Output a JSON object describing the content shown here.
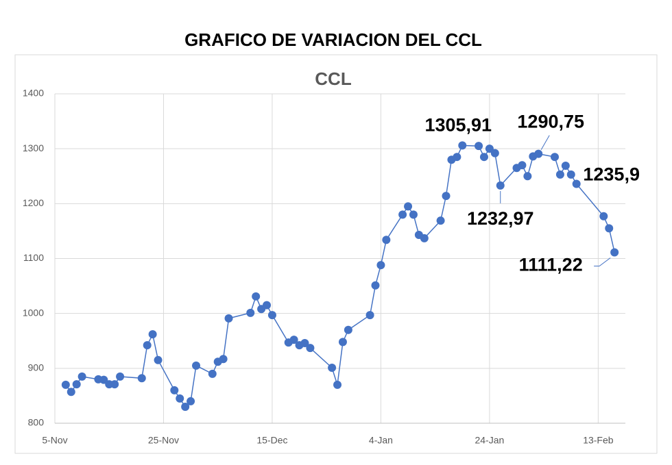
{
  "heading": "GRAFICO DE VARIACION DEL CCL",
  "chart_data": {
    "type": "line",
    "title": "CCL",
    "x": [
      "7-Nov",
      "8-Nov",
      "9-Nov",
      "10-Nov",
      "13-Nov",
      "14-Nov",
      "15-Nov",
      "16-Nov",
      "17-Nov",
      "21-Nov",
      "22-Nov",
      "23-Nov",
      "24-Nov",
      "27-Nov",
      "28-Nov",
      "29-Nov",
      "30-Nov",
      "1-Dec",
      "4-Dec",
      "5-Dec",
      "6-Dec",
      "7-Dec",
      "11-Dec",
      "12-Dec",
      "13-Dec",
      "14-Dec",
      "15-Dec",
      "18-Dec",
      "19-Dec",
      "20-Dec",
      "21-Dec",
      "22-Dec",
      "26-Dec",
      "27-Dec",
      "28-Dec",
      "29-Dec",
      "2-Jan",
      "3-Jan",
      "4-Jan",
      "5-Jan",
      "8-Jan",
      "9-Jan",
      "10-Jan",
      "11-Jan",
      "12-Jan",
      "15-Jan",
      "16-Jan",
      "17-Jan",
      "18-Jan",
      "19-Jan",
      "22-Jan",
      "23-Jan",
      "24-Jan",
      "25-Jan",
      "26-Jan",
      "29-Jan",
      "30-Jan",
      "31-Jan",
      "1-Feb",
      "2-Feb",
      "5-Feb",
      "6-Feb",
      "7-Feb",
      "8-Feb",
      "9-Feb",
      "14-Feb",
      "15-Feb",
      "16-Feb"
    ],
    "series": [
      {
        "name": "CCL",
        "color": "#4472c4",
        "values": [
          870,
          857,
          871,
          885,
          880,
          879,
          871,
          871,
          885,
          882,
          942,
          962,
          915,
          860,
          845,
          830,
          840,
          905,
          890,
          912,
          917,
          991,
          1001,
          1031,
          1008,
          1015,
          997,
          947,
          952,
          942,
          946,
          937,
          901,
          870,
          948,
          970,
          997,
          1051,
          1088,
          1134,
          1180,
          1195,
          1180,
          1143,
          1137,
          1169,
          1214,
          1280,
          1285,
          1305.91,
          1305,
          1285,
          1300,
          1292,
          1232.97,
          1265,
          1270,
          1250,
          1286,
          1290.75,
          1285,
          1253,
          1269,
          1253,
          1235.9,
          1177,
          1155,
          1111.22
        ],
        "value_labels": [
          null,
          null,
          null,
          null,
          null,
          null,
          null,
          null,
          null,
          null,
          null,
          null,
          null,
          null,
          null,
          null,
          null,
          null,
          null,
          null,
          null,
          null,
          null,
          null,
          null,
          null,
          null,
          null,
          null,
          null,
          null,
          null,
          null,
          null,
          null,
          null,
          null,
          null,
          null,
          null,
          null,
          null,
          null,
          null,
          null,
          null,
          null,
          null,
          null,
          "1305,91",
          null,
          null,
          null,
          null,
          "1232,97",
          null,
          null,
          null,
          null,
          "1290,75",
          null,
          null,
          null,
          null,
          "1235,9",
          null,
          null,
          "1111,22"
        ]
      }
    ],
    "xlim": [
      "5-Nov",
      "18-Feb"
    ],
    "xticks": [
      "5-Nov",
      "25-Nov",
      "15-Dec",
      "4-Jan",
      "24-Jan",
      "13-Feb"
    ],
    "ylim": [
      800,
      1400
    ],
    "yticks": [
      800,
      900,
      1000,
      1100,
      1200,
      1300,
      1400
    ],
    "grid": true
  }
}
